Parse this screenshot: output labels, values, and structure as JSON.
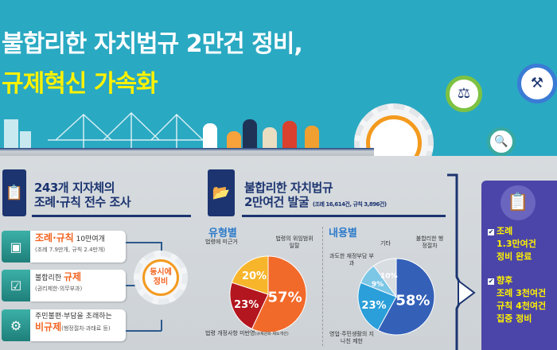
{
  "header": {
    "title_line1": "불합리한 자치법규 2만건 정비,",
    "title_line2": "규제혁신 가속화"
  },
  "section1": {
    "title_line1": "243개 지자체의",
    "title_line2": "조례·규칙 전수 조사",
    "items": [
      {
        "highlight": "조례·규칙",
        "text": "10만여개",
        "sub": "(조례 7.9만개, 규칙 2.4만개)",
        "icon": "boxes-search-icon"
      },
      {
        "text": "불합리한",
        "highlight": "규제",
        "sub": "(권리제한·의무부과)",
        "icon": "document-check-icon"
      },
      {
        "text": "주민불편·부담을 초래하는",
        "highlight": "비규제",
        "sub": "(행정절차·과태료 등)",
        "icon": "gear-cycle-icon"
      }
    ],
    "gear_line1": "동시에",
    "gear_line2": "정비"
  },
  "section2": {
    "title_line1": "불합리한 자치법규",
    "title_line2": "2만여건 발굴",
    "subtitle": "(조례 16,614건, 규칙 3,896건)"
  },
  "chart_data": [
    {
      "type": "pie",
      "title": "유형별",
      "labels": [
        "법령의 위임범위 일탈",
        "법령 개정사항 미반영",
        "법령에 미근거"
      ],
      "label_notes": [
        "",
        "(규제완화·제도개선)",
        ""
      ],
      "values": [
        57,
        23,
        20
      ],
      "value_labels": [
        "57%",
        "23%",
        "20%"
      ],
      "colors": [
        "#f26a2a",
        "#b3161e",
        "#f7b52c"
      ]
    },
    {
      "type": "pie",
      "title": "내용별",
      "labels": [
        "불합리한 행정절차",
        "영업·주민생활의 지나친 제한",
        "과도한 재정부담 부과",
        "기타"
      ],
      "values": [
        58,
        23,
        9,
        10
      ],
      "value_labels": [
        "58%",
        "23%",
        "9%",
        "10%"
      ],
      "colors": [
        "#3460b8",
        "#2b9fd9",
        "#7cc6e6",
        "#d8dde2"
      ]
    }
  ],
  "panel": {
    "item1": [
      "조례",
      "1.3만여건",
      "정비 완료"
    ],
    "item2": [
      "향후",
      "조례 3천여건",
      "규칙 4천여건",
      "집중 정비"
    ]
  },
  "colors": {
    "banner": "#2aa9c2",
    "navy": "#1c3470",
    "accent_orange": "#f26522",
    "panel": "#4b45a9",
    "panel_text": "#fff200"
  }
}
